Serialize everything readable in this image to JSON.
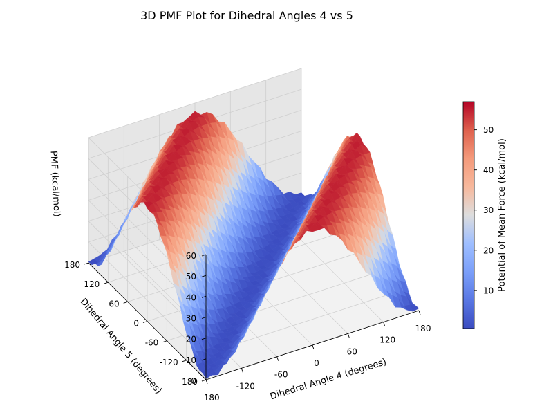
{
  "chart_data": {
    "type": "surface3d",
    "title": "3D PMF Plot for Dihedral Angles 4 vs 5",
    "xlabel": "Dihedral Angle 4 (degrees)",
    "ylabel": "Dihedral Angle 5 (degrees)",
    "zlabel": "PMF (kcal/mol)",
    "xlim": [
      -180,
      180
    ],
    "ylim": [
      -180,
      180
    ],
    "zlim": [
      0,
      60
    ],
    "x_ticks": [
      -180,
      -120,
      -60,
      0,
      60,
      120,
      180
    ],
    "y_ticks": [
      -180,
      -120,
      -60,
      0,
      60,
      120,
      180
    ],
    "z_ticks": [
      0,
      10,
      20,
      30,
      40,
      50,
      60
    ],
    "colorbar": {
      "label": "Potential of Mean Force (kcal/mol)",
      "min": 0.5,
      "max": 57,
      "ticks": [
        10,
        20,
        30,
        40,
        50
      ],
      "colormap": "coolwarm"
    },
    "surface": {
      "grid_points": 37,
      "function": "PMF(x,y) = 55*sin^2((x-y)/2 in deg) + small noise",
      "min_value": 0.5,
      "max_value": 57,
      "valley_line": "x = y"
    },
    "grid": true
  },
  "colors": {
    "colormap_low": "#3b4cc0",
    "colormap_mid": "#dddddd",
    "colormap_high": "#b40426",
    "pane_left": "#ececec",
    "pane_right": "#e6e6e6",
    "pane_floor": "#f2f2f2"
  }
}
